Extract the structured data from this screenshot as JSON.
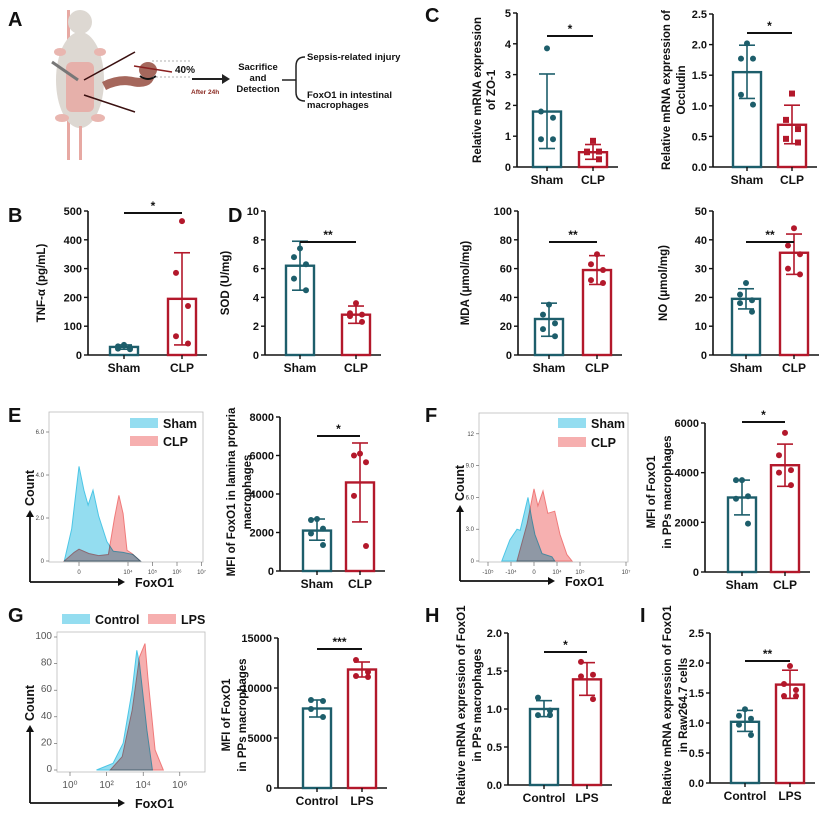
{
  "panels": [
    "A",
    "B",
    "C",
    "D",
    "E",
    "F",
    "G",
    "H",
    "I"
  ],
  "schematic": {
    "percent": "40%",
    "after": "After 24h",
    "step": [
      "Sacrifice",
      "and",
      "Detection"
    ],
    "outcome1": "Sepsis-related injury",
    "outcome2": [
      "FoxO1 in intestinal",
      "macrophages"
    ]
  },
  "colors": {
    "sham": "#1d5e6b",
    "clp": "#b3182b",
    "hist_sham": "#4cc6e6",
    "hist_clp": "#f07a7a"
  },
  "chart_data": [
    {
      "type": "bar",
      "panel": "C",
      "ylabel": [
        "Relative mRNA expression",
        "of ZO-1"
      ],
      "ylim": [
        0,
        5
      ],
      "yticks": [
        "0",
        "1",
        "2",
        "3",
        "4",
        "5"
      ],
      "significance": "*",
      "groups": [
        {
          "category": "Sham",
          "mean": 1.8,
          "error": [
            0.6,
            3.02
          ],
          "points": [
            3.85,
            1.8,
            1.6,
            0.9,
            0.9
          ]
        },
        {
          "category": "CLP",
          "mean": 0.48,
          "error": [
            0.25,
            0.73
          ],
          "points": [
            0.85,
            0.5,
            0.5,
            0.48,
            0.25
          ]
        }
      ]
    },
    {
      "type": "bar",
      "panel": "C",
      "ylabel": [
        "Relative mRNA expression of",
        "Occludin"
      ],
      "ylim": [
        0,
        2.5
      ],
      "yticks": [
        "0.0",
        "0.5",
        "1.0",
        "1.5",
        "2.0",
        "2.5"
      ],
      "significance": "*",
      "groups": [
        {
          "category": "Sham",
          "mean": 1.55,
          "error": [
            1.12,
            1.99
          ],
          "points": [
            2.02,
            1.77,
            1.77,
            1.18,
            1.02
          ]
        },
        {
          "category": "CLP",
          "mean": 0.69,
          "error": [
            0.38,
            1.01
          ],
          "points": [
            1.2,
            0.77,
            0.62,
            0.46,
            0.4
          ]
        }
      ]
    },
    {
      "type": "bar",
      "panel": "B",
      "ylabel": [
        "TNF-α (pg/mL)"
      ],
      "ylim": [
        0,
        500
      ],
      "yticks": [
        "0",
        "100",
        "200",
        "300",
        "400",
        "500"
      ],
      "significance": "*",
      "groups": [
        {
          "category": "Sham",
          "mean": 28,
          "error": [
            20,
            35
          ],
          "points": [
            35,
            30,
            25,
            22,
            20
          ]
        },
        {
          "category": "CLP",
          "mean": 195,
          "error": [
            35,
            355
          ],
          "points": [
            465,
            285,
            170,
            65,
            40
          ]
        }
      ]
    },
    {
      "type": "bar",
      "panel": "D",
      "ylabel": [
        "SOD (U/mg)"
      ],
      "ylim": [
        0,
        10
      ],
      "yticks": [
        "0",
        "2",
        "4",
        "6",
        "8",
        "10"
      ],
      "significance": "**",
      "groups": [
        {
          "category": "Sham",
          "mean": 6.2,
          "error": [
            4.5,
            7.9
          ],
          "points": [
            7.4,
            6.8,
            6.3,
            5.3,
            4.5
          ]
        },
        {
          "category": "CLP",
          "mean": 2.8,
          "error": [
            2.2,
            3.4
          ],
          "points": [
            3.6,
            2.9,
            2.8,
            2.7,
            2.3
          ]
        }
      ]
    },
    {
      "type": "bar",
      "panel": "D",
      "ylabel": [
        "MDA (μmol/mg)"
      ],
      "ylim": [
        0,
        100
      ],
      "yticks": [
        "0",
        "20",
        "40",
        "60",
        "80",
        "100"
      ],
      "significance": "**",
      "groups": [
        {
          "category": "Sham",
          "mean": 25,
          "error": [
            13,
            36
          ],
          "points": [
            35,
            28,
            22,
            18,
            13
          ]
        },
        {
          "category": "CLP",
          "mean": 59,
          "error": [
            49,
            69
          ],
          "points": [
            70,
            63,
            59,
            52,
            50
          ]
        }
      ]
    },
    {
      "type": "bar",
      "panel": "D",
      "ylabel": [
        "NO (μmol/mg)"
      ],
      "ylim": [
        0,
        50
      ],
      "yticks": [
        "0",
        "10",
        "20",
        "30",
        "40",
        "50"
      ],
      "significance": "**",
      "groups": [
        {
          "category": "Sham",
          "mean": 19.5,
          "error": [
            16,
            23
          ],
          "points": [
            25,
            21,
            19,
            18,
            15
          ]
        },
        {
          "category": "CLP",
          "mean": 35.5,
          "error": [
            28,
            42
          ],
          "points": [
            44,
            38,
            35,
            30,
            28
          ]
        }
      ]
    },
    {
      "type": "area",
      "panel": "E",
      "xlabel": "FoxO1",
      "ylabel": "Count",
      "yticks": [
        "0",
        "2.0",
        "4.0",
        "6.0"
      ],
      "xticks": [
        "0",
        "10⁴",
        "10⁵",
        "10⁶",
        "10⁷"
      ],
      "legend": "top-right",
      "series": [
        {
          "name": "Sham",
          "points": [
            [
              -0.6,
              0
            ],
            [
              -0.3,
              1.5
            ],
            [
              0,
              4.4
            ],
            [
              0.2,
              3.3
            ],
            [
              0.37,
              2.6
            ],
            [
              0.57,
              3.3
            ],
            [
              0.8,
              2.1
            ],
            [
              1.14,
              0.9
            ],
            [
              1.4,
              0.45
            ],
            [
              1.8,
              0.4
            ],
            [
              2.2,
              0.3
            ],
            [
              2.5,
              0
            ]
          ]
        },
        {
          "name": "CLP",
          "points": [
            [
              -0.6,
              0
            ],
            [
              -0.2,
              0.4
            ],
            [
              0,
              0.55
            ],
            [
              0.4,
              0.35
            ],
            [
              0.8,
              0.25
            ],
            [
              1.2,
              0.3
            ],
            [
              1.45,
              2.0
            ],
            [
              1.63,
              3.05
            ],
            [
              1.8,
              2.2
            ],
            [
              1.96,
              0.5
            ],
            [
              2.16,
              0.35
            ],
            [
              2.5,
              0
            ]
          ]
        }
      ]
    },
    {
      "type": "bar",
      "panel": "E",
      "ylabel": [
        "MFI of FoxO1 in lamina propria",
        "macrophages"
      ],
      "ylim": [
        0,
        8000
      ],
      "yticks": [
        "0",
        "2000",
        "4000",
        "6000",
        "8000"
      ],
      "significance": "*",
      "groups": [
        {
          "category": "Sham",
          "mean": 2100,
          "error": [
            1600,
            2700
          ],
          "points": [
            2700,
            2650,
            2200,
            1950,
            1350
          ]
        },
        {
          "category": "CLP",
          "mean": 4600,
          "error": [
            2550,
            6650
          ],
          "points": [
            6100,
            6000,
            5650,
            3900,
            1300
          ]
        }
      ]
    },
    {
      "type": "area",
      "panel": "F",
      "xlabel": "FoxO1",
      "ylabel": "Count",
      "yticks": [
        "0",
        "3.0",
        "6.0",
        "9.0",
        "12"
      ],
      "xticks": [
        "-10⁵",
        "-10⁴",
        "0",
        "10⁴",
        "10⁵",
        "10⁷"
      ],
      "legend": "top-right",
      "series": [
        {
          "name": "Sham",
          "points": [
            [
              -1.4,
              0
            ],
            [
              -1.05,
              2.0
            ],
            [
              -0.74,
              3.0
            ],
            [
              -0.6,
              2.9
            ],
            [
              -0.26,
              6.0
            ],
            [
              -0.1,
              4.0
            ],
            [
              0.04,
              2.5
            ],
            [
              0.35,
              0.7
            ],
            [
              0.78,
              0.4
            ],
            [
              0.9,
              0
            ]
          ]
        },
        {
          "name": "CLP",
          "points": [
            [
              -0.74,
              0
            ],
            [
              -0.3,
              3.5
            ],
            [
              0,
              6.8
            ],
            [
              0.17,
              5.2
            ],
            [
              0.39,
              6.6
            ],
            [
              0.6,
              4.5
            ],
            [
              0.9,
              4.7
            ],
            [
              1.13,
              2.5
            ],
            [
              1.43,
              0.6
            ],
            [
              1.65,
              0
            ]
          ]
        }
      ]
    },
    {
      "type": "bar",
      "panel": "F",
      "ylabel": [
        "MFI of FoxO1",
        "in PPs macrophages"
      ],
      "ylim": [
        0,
        6000
      ],
      "yticks": [
        "0",
        "2000",
        "4000",
        "6000"
      ],
      "significance": "*",
      "groups": [
        {
          "category": "Sham",
          "mean": 3000,
          "error": [
            2300,
            3700
          ],
          "points": [
            3700,
            3700,
            3050,
            2950,
            1950
          ]
        },
        {
          "category": "CLP",
          "mean": 4300,
          "error": [
            3450,
            5150
          ],
          "points": [
            5600,
            4700,
            4100,
            4000,
            3500
          ]
        }
      ]
    },
    {
      "type": "area",
      "panel": "G",
      "xlabel": "FoxO1",
      "ylabel": "Count",
      "yticks": [
        "0",
        "20",
        "40",
        "60",
        "80",
        "100"
      ],
      "xticks": [
        "10⁰",
        "10²",
        "10⁴",
        "10⁶"
      ],
      "legend": "top",
      "series": [
        {
          "name": "Control",
          "points": [
            [
              1.45,
              0
            ],
            [
              2.35,
              5
            ],
            [
              2.9,
              20
            ],
            [
              3.4,
              60
            ],
            [
              3.65,
              90
            ],
            [
              3.8,
              80
            ],
            [
              4.2,
              30
            ],
            [
              4.5,
              0
            ]
          ]
        },
        {
          "name": "LPS",
          "points": [
            [
              2.2,
              0
            ],
            [
              2.85,
              10
            ],
            [
              3.4,
              45
            ],
            [
              3.8,
              85
            ],
            [
              4.1,
              95
            ],
            [
              4.25,
              70
            ],
            [
              4.65,
              15
            ],
            [
              5.1,
              0
            ]
          ]
        }
      ]
    },
    {
      "type": "bar",
      "panel": "G",
      "ylabel": [
        "MFI of FoxO1",
        "in PPs macrophages"
      ],
      "ylim": [
        0,
        15000
      ],
      "yticks": [
        "0",
        "5000",
        "10000",
        "15000"
      ],
      "significance": "***",
      "groups": [
        {
          "category": "Control",
          "mean": 7950,
          "error": [
            7100,
            8800
          ],
          "points": [
            8800,
            8700,
            7900,
            7100
          ]
        },
        {
          "category": "LPS",
          "mean": 11850,
          "error": [
            11100,
            12600
          ],
          "points": [
            12800,
            11600,
            11200,
            11100
          ]
        }
      ]
    },
    {
      "type": "bar",
      "panel": "H",
      "ylabel": [
        "Relative mRNA expression of FoxO1",
        "in PPs macrophages"
      ],
      "ylim": [
        0,
        2.0
      ],
      "yticks": [
        "0.0",
        "0.5",
        "1.0",
        "1.5",
        "2.0"
      ],
      "significance": "*",
      "groups": [
        {
          "category": "Control",
          "mean": 1.0,
          "error": [
            0.9,
            1.11
          ],
          "points": [
            1.15,
            0.98,
            0.92,
            0.92
          ]
        },
        {
          "category": "LPS",
          "mean": 1.39,
          "error": [
            1.18,
            1.61
          ],
          "points": [
            1.62,
            1.45,
            1.43,
            1.13
          ]
        }
      ]
    },
    {
      "type": "bar",
      "panel": "I",
      "ylabel": [
        "Relative mRNA expression of FoxO1",
        "in Raw264.7 cells"
      ],
      "ylim": [
        0,
        2.5
      ],
      "yticks": [
        "0.0",
        "0.5",
        "1.0",
        "1.5",
        "2.0",
        "2.5"
      ],
      "significance": "**",
      "groups": [
        {
          "category": "Control",
          "mean": 1.02,
          "error": [
            0.86,
            1.21
          ],
          "points": [
            1.23,
            1.12,
            1.07,
            0.97,
            0.8
          ]
        },
        {
          "category": "LPS",
          "mean": 1.64,
          "error": [
            1.41,
            1.88
          ],
          "points": [
            1.95,
            1.65,
            1.55,
            1.45,
            1.45
          ]
        }
      ]
    }
  ]
}
